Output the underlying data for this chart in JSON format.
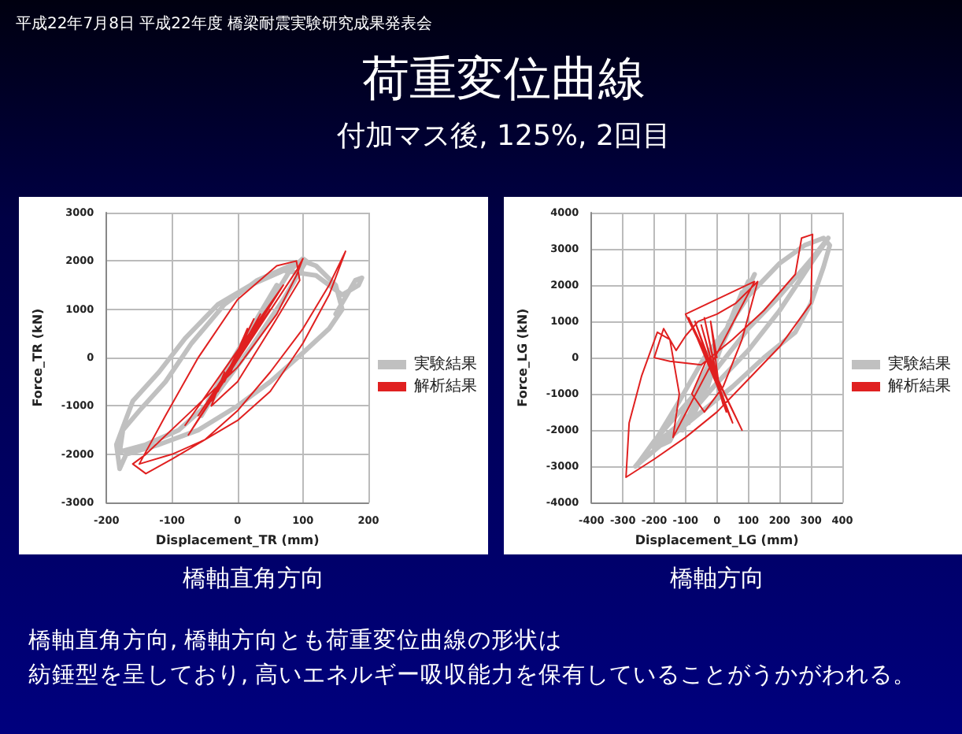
{
  "chart_data": [
    {
      "type": "line",
      "title": "荷重変位曲線",
      "subtitle": "付加マス後, 125%, 2回目",
      "xlabel": "Displacement_TR (mm)",
      "ylabel": "Force_TR (kN)",
      "annotations": [
        "平成22年7月8日  平成22年度  橋梁耐震実験研究成果発表会",
        "橋軸直角方向"
      ],
      "xlim": [
        -200,
        200
      ],
      "xticks": [
        -200,
        -100,
        0,
        100,
        200
      ],
      "ylim": [
        -3000,
        3000
      ],
      "yticks": [
        -3000,
        -2000,
        -1000,
        0,
        1000,
        2000,
        3000
      ],
      "grid": true,
      "legend": "right",
      "marker": "none",
      "line_style": "solid",
      "series": [
        {
          "name": "実験結果",
          "color": "#c0c0c0",
          "x": [
            0,
            20,
            -15,
            35,
            -30,
            50,
            -45,
            60,
            -55,
            80,
            100,
            105,
            70,
            20,
            -40,
            -90,
            -140,
            -180,
            -175,
            -150,
            -110,
            -70,
            -20,
            30,
            80,
            100,
            120,
            150,
            160,
            140,
            100,
            50,
            0,
            -60,
            -120,
            -170,
            -180,
            -185,
            -160,
            -120,
            -80,
            -30,
            20,
            70,
            120,
            160,
            185,
            190,
            180,
            150
          ],
          "values": [
            0,
            500,
            -300,
            800,
            -600,
            1200,
            -900,
            1500,
            -1200,
            1800,
            2050,
            2000,
            1200,
            200,
            -900,
            -1500,
            -1800,
            -1950,
            -1500,
            -1100,
            -500,
            300,
            1100,
            1600,
            1900,
            2000,
            1900,
            1500,
            1000,
            600,
            100,
            -500,
            -1000,
            -1500,
            -1800,
            -2000,
            -2300,
            -1800,
            -900,
            -300,
            400,
            1100,
            1500,
            1800,
            1700,
            1300,
            1500,
            1650,
            1600,
            900
          ]
        },
        {
          "name": "解析結果",
          "color": "#e02020",
          "x": [
            0,
            10,
            -10,
            15,
            -20,
            25,
            -30,
            35,
            -40,
            50,
            -60,
            60,
            -80,
            70,
            -75,
            90,
            100,
            90,
            60,
            0,
            -70,
            -140,
            -160,
            -140,
            -100,
            -50,
            0,
            50,
            100,
            140,
            165,
            140,
            100,
            50,
            0,
            -50,
            -100,
            -150,
            -110,
            -60,
            0,
            60,
            90,
            95,
            55,
            0,
            -40,
            -20
          ],
          "values": [
            0,
            400,
            -300,
            600,
            -500,
            800,
            -700,
            900,
            -900,
            1000,
            -1200,
            1300,
            -1400,
            1500,
            -1600,
            1800,
            2050,
            1700,
            900,
            -200,
            -1100,
            -2000,
            -2200,
            -2400,
            -2100,
            -1700,
            -1300,
            -700,
            300,
            1300,
            2200,
            1500,
            600,
            -300,
            -1100,
            -1700,
            -2000,
            -2200,
            -1200,
            0,
            1200,
            1900,
            2000,
            1600,
            700,
            -500,
            -1000,
            -300
          ]
        }
      ]
    },
    {
      "type": "line",
      "xlabel": "Displacement_LG (mm)",
      "ylabel": "Force_LG (kN)",
      "annotations": [
        "橋軸方向",
        "橋軸直角方向, 橋軸方向とも荷重変位曲線の形状は",
        "紡錘型を呈しており, 高いエネルギー吸収能力を保有していることがうかがわれる。"
      ],
      "xlim": [
        -400,
        400
      ],
      "xticks": [
        -400,
        -300,
        -200,
        -100,
        0,
        100,
        200,
        300,
        400
      ],
      "ylim": [
        -4000,
        4000
      ],
      "yticks": [
        -4000,
        -3000,
        -2000,
        -1000,
        0,
        1000,
        2000,
        3000,
        4000
      ],
      "grid": true,
      "legend": "right",
      "marker": "none",
      "line_style": "solid",
      "series": [
        {
          "name": "実験結果",
          "color": "#c0c0c0",
          "x": [
            0,
            20,
            -30,
            40,
            -50,
            60,
            -70,
            80,
            -90,
            100,
            -110,
            120,
            -150,
            -200,
            -190,
            -120,
            -40,
            40,
            100,
            200,
            280,
            340,
            360,
            340,
            300,
            250,
            150,
            50,
            -50,
            -150,
            -260,
            -250,
            -200,
            -100,
            0,
            100,
            200,
            300,
            355,
            300,
            200,
            100,
            0,
            -100,
            -200
          ],
          "values": [
            0,
            600,
            -800,
            1000,
            -1200,
            1400,
            -1500,
            1800,
            -1800,
            2100,
            -2000,
            2300,
            -2300,
            -2500,
            -2200,
            -1200,
            0,
            900,
            1700,
            2600,
            3100,
            3300,
            3100,
            2500,
            1500,
            700,
            0,
            -800,
            -1500,
            -2200,
            -3000,
            -2900,
            -2300,
            -1300,
            -300,
            800,
            1700,
            2700,
            3300,
            2600,
            1300,
            200,
            -700,
            -1700,
            -2400
          ]
        },
        {
          "name": "解析結果",
          "color": "#e02020",
          "x": [
            0,
            -20,
            10,
            -40,
            20,
            -50,
            30,
            -70,
            50,
            -90,
            80,
            -100,
            120,
            -140,
            -120,
            -150,
            -190,
            -240,
            -280,
            -290,
            -200,
            -100,
            0,
            100,
            200,
            300,
            305,
            270,
            250,
            150,
            50,
            -50,
            -150,
            -200,
            -170,
            -130,
            -100,
            -60,
            0,
            60,
            130,
            80,
            20,
            -40,
            -80,
            -30
          ],
          "values": [
            0,
            1000,
            -1000,
            1100,
            -1300,
            900,
            -1500,
            1000,
            -1800,
            1100,
            -2000,
            1200,
            2100,
            -2200,
            -1000,
            500,
            700,
            -500,
            -1800,
            -3300,
            -2800,
            -2200,
            -1500,
            -600,
            300,
            1500,
            3400,
            3300,
            2300,
            1300,
            500,
            -200,
            -100,
            0,
            800,
            200,
            600,
            1000,
            1200,
            1500,
            2100,
            500,
            -800,
            -1500,
            -1000,
            0
          ]
        }
      ]
    }
  ]
}
